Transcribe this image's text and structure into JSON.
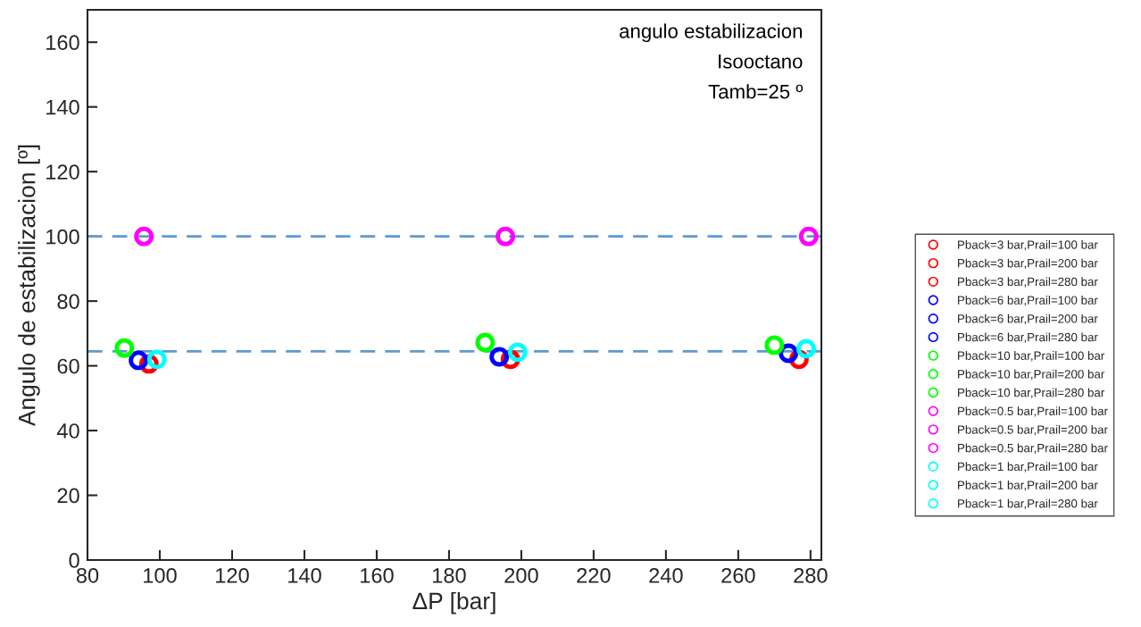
{
  "chart_data": {
    "type": "scatter",
    "xlabel": "ΔP [bar]",
    "ylabel": "Angulo de estabilizacion [º]",
    "annotations": [
      "angulo estabilizacion",
      "Isooctano",
      "Tamb=25 º"
    ],
    "xlim": [
      80,
      283
    ],
    "ylim": [
      0,
      170
    ],
    "xticks": [
      80,
      100,
      120,
      140,
      160,
      180,
      200,
      220,
      240,
      260,
      280
    ],
    "yticks": [
      0,
      20,
      40,
      60,
      80,
      100,
      120,
      140,
      160
    ],
    "grid": false,
    "legend": "right",
    "marker": "circle",
    "ref_lines": [
      {
        "axis": "y",
        "value": 100,
        "color": "#5b9bd5",
        "line_style": "dashed"
      },
      {
        "axis": "y",
        "value": 64.5,
        "color": "#5b9bd5",
        "line_style": "dashed"
      }
    ],
    "series": [
      {
        "name": "Pback=3 bar,Prail=100 bar",
        "color": "#ff0000",
        "x": [
          97.0
        ],
        "values": [
          60.6
        ]
      },
      {
        "name": "Pback=3 bar,Prail=200 bar",
        "color": "#ff0000",
        "x": [
          197.0
        ],
        "values": [
          62.0
        ]
      },
      {
        "name": "Pback=3 bar,Prail=280 bar",
        "color": "#ff0000",
        "x": [
          276.8
        ],
        "values": [
          62.0
        ]
      },
      {
        "name": "Pback=6 bar,Prail=100 bar",
        "color": "#0000ff",
        "x": [
          94.1
        ],
        "values": [
          61.7
        ]
      },
      {
        "name": "Pback=6 bar,Prail=200 bar",
        "color": "#0000ff",
        "x": [
          193.9
        ],
        "values": [
          62.8
        ]
      },
      {
        "name": "Pback=6 bar,Prail=280 bar",
        "color": "#0000ff",
        "x": [
          273.9
        ],
        "values": [
          63.9
        ]
      },
      {
        "name": "Pback=10 bar,Prail=100 bar",
        "color": "#00ff00",
        "x": [
          90.2
        ],
        "values": [
          65.5
        ]
      },
      {
        "name": "Pback=10 bar,Prail=200 bar",
        "color": "#00ff00",
        "x": [
          190.0
        ],
        "values": [
          67.2
        ]
      },
      {
        "name": "Pback=10 bar,Prail=280 bar",
        "color": "#00ff00",
        "x": [
          270.0
        ],
        "values": [
          66.4
        ]
      },
      {
        "name": "Pback=0.5 bar,Prail=100 bar",
        "color": "#ff00ff",
        "x": [
          95.6
        ],
        "values": [
          100
        ]
      },
      {
        "name": "Pback=0.5 bar,Prail=200 bar",
        "color": "#ff00ff",
        "x": [
          195.6
        ],
        "values": [
          100
        ]
      },
      {
        "name": "Pback=0.5 bar,Prail=280 bar",
        "color": "#ff00ff",
        "x": [
          279.5
        ],
        "values": [
          100
        ]
      },
      {
        "name": "Pback=1 bar,Prail=100 bar",
        "color": "#00ffff",
        "x": [
          99.2
        ],
        "values": [
          62.0
        ]
      },
      {
        "name": "Pback=1 bar,Prail=200 bar",
        "color": "#00ffff",
        "x": [
          199.0
        ],
        "values": [
          64.2
        ]
      },
      {
        "name": "Pback=1 bar,Prail=280 bar",
        "color": "#00ffff",
        "x": [
          278.8
        ],
        "values": [
          65.3
        ]
      }
    ]
  }
}
